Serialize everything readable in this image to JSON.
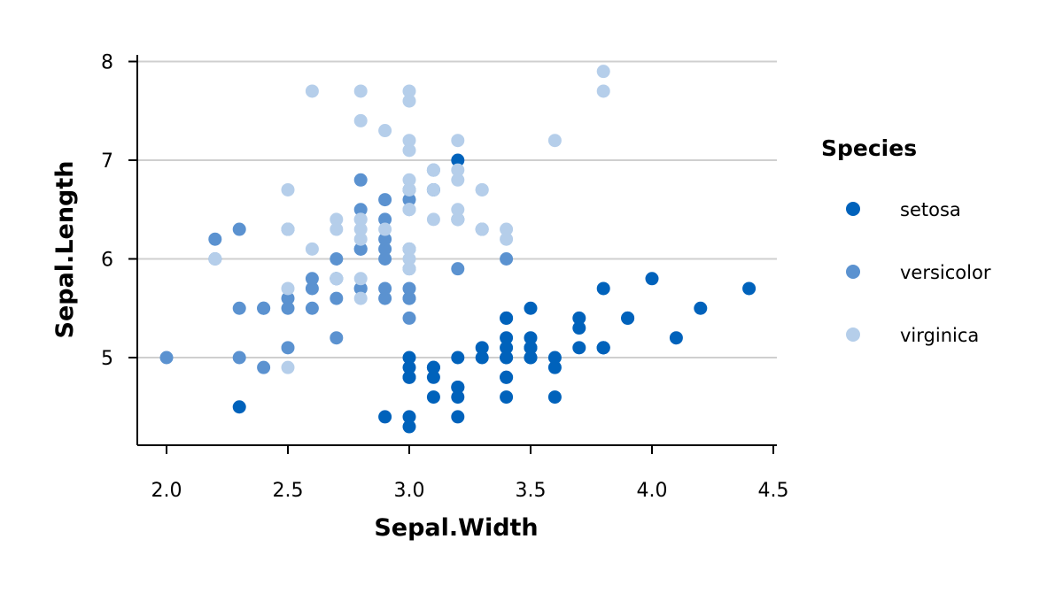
{
  "colors": {
    "setosa": "#0062BB",
    "versicolor": "#5B92D0",
    "virginica": "#B5CEEA",
    "grid": "#CFCFCF",
    "axis": "#000000"
  },
  "chart_data": {
    "type": "scatter",
    "title": "",
    "xlabel": "Sepal.Width",
    "ylabel": "Sepal.Length",
    "xlim": [
      1.9,
      4.5
    ],
    "ylim": [
      4.2,
      8.05
    ],
    "xticks": [
      "2.0",
      "2.5",
      "3.0",
      "3.5",
      "4.0",
      "4.5"
    ],
    "xtick_values": [
      2.0,
      2.5,
      3.0,
      3.5,
      4.0,
      4.5
    ],
    "yticks": [
      "5",
      "6",
      "7",
      "8"
    ],
    "ytick_values": [
      5,
      6,
      7,
      8
    ],
    "grid": "horizontal",
    "legend": {
      "title": "Species",
      "placement": "right",
      "items": [
        {
          "label": "setosa",
          "series": "setosa"
        },
        {
          "label": "versicolor",
          "series": "versicolor"
        },
        {
          "label": "virginica",
          "series": "virginica"
        }
      ]
    },
    "series": [
      {
        "name": "setosa",
        "points": [
          [
            3.5,
            5.1
          ],
          [
            3.0,
            4.9
          ],
          [
            3.2,
            4.7
          ],
          [
            3.1,
            4.6
          ],
          [
            3.6,
            5.0
          ],
          [
            3.9,
            5.4
          ],
          [
            3.4,
            4.6
          ],
          [
            3.4,
            5.0
          ],
          [
            2.9,
            4.4
          ],
          [
            3.1,
            4.9
          ],
          [
            3.7,
            5.4
          ],
          [
            3.4,
            4.8
          ],
          [
            3.0,
            4.8
          ],
          [
            3.0,
            4.3
          ],
          [
            4.0,
            5.8
          ],
          [
            4.4,
            5.7
          ],
          [
            3.9,
            5.4
          ],
          [
            3.5,
            5.1
          ],
          [
            3.8,
            5.7
          ],
          [
            3.8,
            5.1
          ],
          [
            3.4,
            5.4
          ],
          [
            3.7,
            5.1
          ],
          [
            3.6,
            4.6
          ],
          [
            3.3,
            5.1
          ],
          [
            3.4,
            4.8
          ],
          [
            3.0,
            5.0
          ],
          [
            3.4,
            5.0
          ],
          [
            3.5,
            5.2
          ],
          [
            3.4,
            5.2
          ],
          [
            3.2,
            4.7
          ],
          [
            3.1,
            4.8
          ],
          [
            3.4,
            5.4
          ],
          [
            4.1,
            5.2
          ],
          [
            4.2,
            5.5
          ],
          [
            3.1,
            4.9
          ],
          [
            3.2,
            5.0
          ],
          [
            3.5,
            5.5
          ],
          [
            3.6,
            4.9
          ],
          [
            3.0,
            4.4
          ],
          [
            3.4,
            5.1
          ],
          [
            3.5,
            5.0
          ],
          [
            2.3,
            4.5
          ],
          [
            3.2,
            4.4
          ],
          [
            3.5,
            5.0
          ],
          [
            3.8,
            5.1
          ],
          [
            3.0,
            4.8
          ],
          [
            3.8,
            5.1
          ],
          [
            3.2,
            4.6
          ],
          [
            3.7,
            5.3
          ],
          [
            3.3,
            5.0
          ],
          [
            3.2,
            7.0
          ]
        ]
      },
      {
        "name": "versicolor",
        "points": [
          [
            3.2,
            6.4
          ],
          [
            3.1,
            6.9
          ],
          [
            2.3,
            5.5
          ],
          [
            2.8,
            6.5
          ],
          [
            2.8,
            5.7
          ],
          [
            3.3,
            6.3
          ],
          [
            2.4,
            4.9
          ],
          [
            2.9,
            6.6
          ],
          [
            2.7,
            5.2
          ],
          [
            2.0,
            5.0
          ],
          [
            3.0,
            5.9
          ],
          [
            2.2,
            6.0
          ],
          [
            2.9,
            6.1
          ],
          [
            2.9,
            5.6
          ],
          [
            3.1,
            6.7
          ],
          [
            3.0,
            5.6
          ],
          [
            2.7,
            5.8
          ],
          [
            2.2,
            6.2
          ],
          [
            2.5,
            5.6
          ],
          [
            3.2,
            5.9
          ],
          [
            2.8,
            6.1
          ],
          [
            2.5,
            6.3
          ],
          [
            2.8,
            6.1
          ],
          [
            2.9,
            6.4
          ],
          [
            3.0,
            6.6
          ],
          [
            2.8,
            6.8
          ],
          [
            3.0,
            6.7
          ],
          [
            2.9,
            6.0
          ],
          [
            2.6,
            5.7
          ],
          [
            2.4,
            5.5
          ],
          [
            2.4,
            5.5
          ],
          [
            2.7,
            5.8
          ],
          [
            2.7,
            6.0
          ],
          [
            3.0,
            5.4
          ],
          [
            3.4,
            6.0
          ],
          [
            3.1,
            6.7
          ],
          [
            2.3,
            6.3
          ],
          [
            3.0,
            5.6
          ],
          [
            2.5,
            5.5
          ],
          [
            2.6,
            5.5
          ],
          [
            3.0,
            6.1
          ],
          [
            2.6,
            5.8
          ],
          [
            2.3,
            5.0
          ],
          [
            2.7,
            5.6
          ],
          [
            3.0,
            5.7
          ],
          [
            2.9,
            5.7
          ],
          [
            2.9,
            6.2
          ],
          [
            2.5,
            5.1
          ],
          [
            2.8,
            5.7
          ]
        ]
      },
      {
        "name": "virginica",
        "points": [
          [
            3.3,
            6.3
          ],
          [
            2.7,
            5.8
          ],
          [
            3.0,
            7.1
          ],
          [
            2.9,
            6.3
          ],
          [
            3.0,
            6.5
          ],
          [
            3.0,
            7.6
          ],
          [
            2.5,
            4.9
          ],
          [
            2.9,
            7.3
          ],
          [
            2.5,
            6.7
          ],
          [
            3.6,
            7.2
          ],
          [
            3.2,
            6.5
          ],
          [
            2.7,
            6.4
          ],
          [
            3.0,
            6.8
          ],
          [
            2.5,
            5.7
          ],
          [
            2.8,
            5.8
          ],
          [
            3.2,
            6.4
          ],
          [
            3.0,
            6.5
          ],
          [
            3.8,
            7.7
          ],
          [
            2.6,
            7.7
          ],
          [
            2.2,
            6.0
          ],
          [
            3.2,
            6.9
          ],
          [
            2.8,
            5.6
          ],
          [
            2.8,
            7.7
          ],
          [
            2.7,
            6.3
          ],
          [
            3.3,
            6.7
          ],
          [
            3.2,
            7.2
          ],
          [
            2.8,
            6.2
          ],
          [
            3.0,
            6.1
          ],
          [
            2.8,
            6.4
          ],
          [
            3.0,
            7.2
          ],
          [
            2.8,
            7.4
          ],
          [
            3.8,
            7.9
          ],
          [
            2.8,
            6.4
          ],
          [
            2.8,
            6.3
          ],
          [
            2.6,
            6.1
          ],
          [
            3.0,
            7.7
          ],
          [
            3.4,
            6.3
          ],
          [
            3.1,
            6.4
          ],
          [
            3.0,
            6.0
          ],
          [
            3.1,
            6.9
          ],
          [
            3.1,
            6.7
          ],
          [
            3.1,
            6.9
          ],
          [
            2.7,
            5.8
          ],
          [
            3.2,
            6.8
          ],
          [
            3.3,
            6.7
          ],
          [
            3.0,
            6.7
          ],
          [
            2.5,
            6.3
          ],
          [
            3.0,
            6.5
          ],
          [
            3.4,
            6.2
          ],
          [
            3.0,
            5.9
          ]
        ]
      }
    ]
  }
}
